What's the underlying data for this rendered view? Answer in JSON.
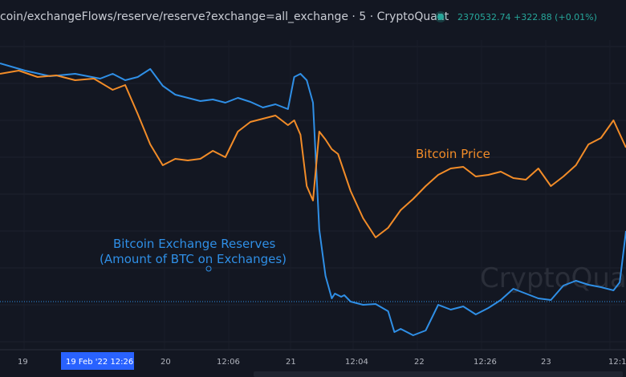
{
  "header": {
    "title": "coin/exchangeFlows/reserve/reserve?exchange=all_exchange · 5 · CryptoQuant",
    "price_text": "2370532.74  +322.88 (+0.01%)",
    "status_color": "#26a69a"
  },
  "watermark": "CryptoQuant",
  "colors": {
    "background": "#131722",
    "reserve": "#2f8fe6",
    "price": "#f28c28",
    "grid": "#1e222d",
    "crosshair_label_bg": "#2962ff"
  },
  "chart_data": {
    "type": "line",
    "x_tick_labels": [
      "19",
      "20",
      "12:06",
      "21",
      "12:04",
      "22",
      "12:26",
      "23",
      "12:1"
    ],
    "crosshair_label": "19 Feb '22   12:26",
    "grid": true,
    "annotations": [
      {
        "text": "Bitcoin Price",
        "color": "#f28c28"
      },
      {
        "text": "Bitcoin Exchange Reserves",
        "color": "#2f8fe6"
      },
      {
        "text": "(Amount of BTC on Exchanges)",
        "color": "#2f8fe6"
      }
    ],
    "series": [
      {
        "key": "reserve",
        "color": "#2f8fe6",
        "x": [
          0,
          0.04,
          0.08,
          0.12,
          0.16,
          0.18,
          0.2,
          0.22,
          0.24,
          0.26,
          0.28,
          0.3,
          0.32,
          0.34,
          0.36,
          0.38,
          0.4,
          0.42,
          0.44,
          0.46,
          0.47,
          0.48,
          0.49,
          0.5,
          0.51,
          0.52,
          0.53,
          0.535,
          0.545,
          0.55,
          0.56,
          0.58,
          0.6,
          0.62,
          0.63,
          0.64,
          0.66,
          0.68,
          0.7,
          0.72,
          0.74,
          0.76,
          0.78,
          0.8,
          0.82,
          0.84,
          0.86,
          0.88,
          0.9,
          0.92,
          0.94,
          0.96,
          0.98,
          0.99,
          1.0
        ],
        "y": [
          79,
          88,
          95,
          92,
          98,
          92,
          100,
          96,
          86,
          107,
          118,
          122,
          126,
          124,
          128,
          122,
          127,
          134,
          130,
          136,
          96,
          92,
          100,
          128,
          286,
          344,
          372,
          366,
          370,
          368,
          376,
          380,
          379,
          388,
          414,
          410,
          418,
          412,
          380,
          386,
          382,
          392,
          384,
          374,
          360,
          366,
          372,
          374,
          356,
          350,
          355,
          358,
          362,
          352,
          288
        ]
      },
      {
        "key": "price",
        "color": "#f28c28",
        "x": [
          0,
          0.03,
          0.06,
          0.09,
          0.12,
          0.15,
          0.18,
          0.2,
          0.22,
          0.24,
          0.26,
          0.28,
          0.3,
          0.32,
          0.34,
          0.36,
          0.38,
          0.4,
          0.42,
          0.44,
          0.46,
          0.47,
          0.48,
          0.49,
          0.5,
          0.51,
          0.52,
          0.53,
          0.54,
          0.56,
          0.58,
          0.6,
          0.62,
          0.64,
          0.66,
          0.68,
          0.7,
          0.72,
          0.74,
          0.76,
          0.78,
          0.8,
          0.82,
          0.84,
          0.86,
          0.88,
          0.9,
          0.92,
          0.94,
          0.96,
          0.98,
          1.0
        ],
        "y": [
          92,
          88,
          96,
          94,
          100,
          98,
          112,
          106,
          142,
          180,
          206,
          198,
          200,
          198,
          188,
          196,
          164,
          152,
          148,
          144,
          156,
          150,
          168,
          232,
          250,
          164,
          174,
          186,
          192,
          238,
          272,
          296,
          284,
          262,
          248,
          232,
          218,
          210,
          208,
          220,
          218,
          214,
          222,
          224,
          210,
          232,
          220,
          206,
          180,
          172,
          150,
          184
        ]
      }
    ]
  }
}
